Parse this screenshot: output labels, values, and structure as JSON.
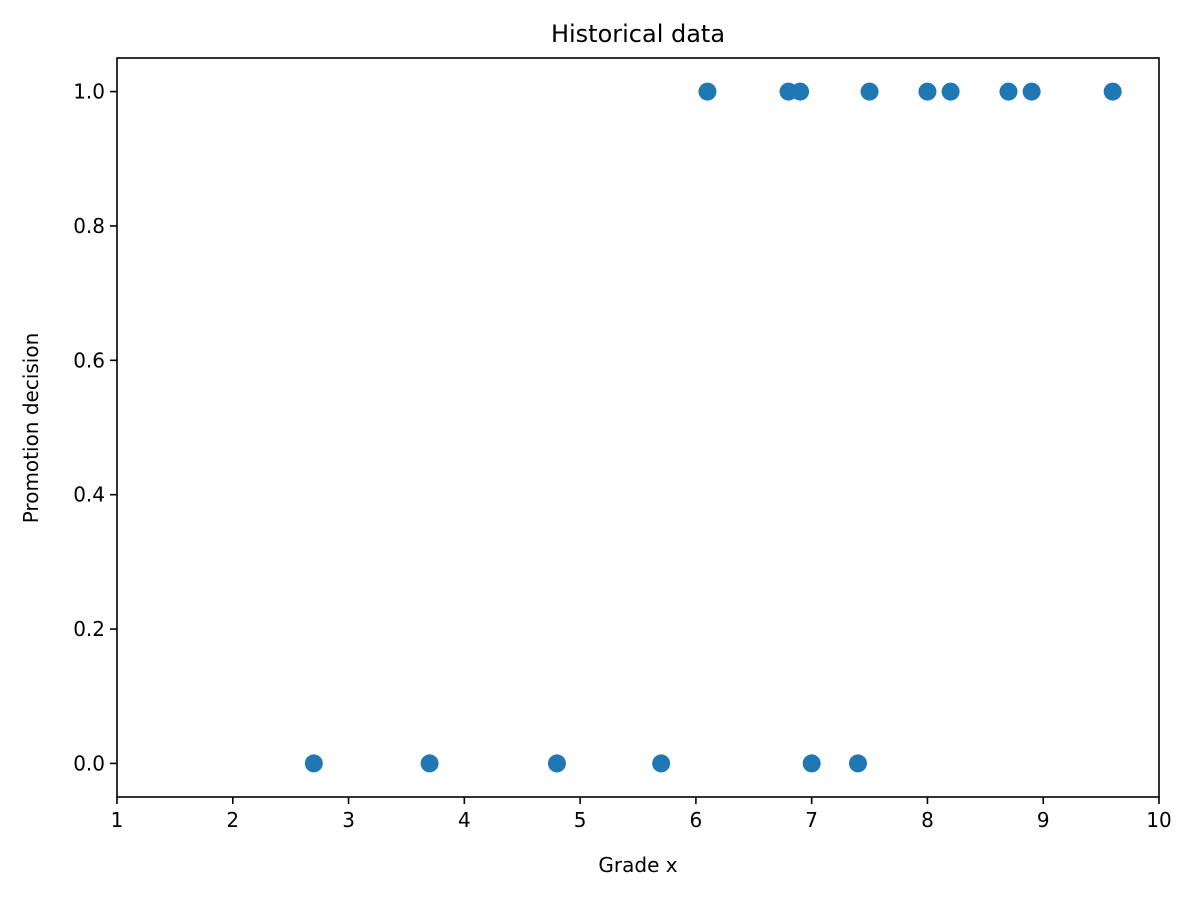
{
  "chart_data": {
    "type": "scatter",
    "title": "Historical data",
    "xlabel": "Grade x",
    "ylabel": "Promotion decision",
    "xlim": [
      1,
      10
    ],
    "ylim": [
      -0.05,
      1.05
    ],
    "x_ticks": [
      1,
      2,
      3,
      4,
      5,
      6,
      7,
      8,
      9,
      10
    ],
    "x_tick_labels": [
      "1",
      "2",
      "3",
      "4",
      "5",
      "6",
      "7",
      "8",
      "9",
      "10"
    ],
    "y_ticks": [
      0.0,
      0.2,
      0.4,
      0.6,
      0.8,
      1.0
    ],
    "y_tick_labels": [
      "0.0",
      "0.2",
      "0.4",
      "0.6",
      "0.8",
      "1.0"
    ],
    "grid": false,
    "marker_color": "#1f77b4",
    "series": [
      {
        "x": [
          2.7,
          3.7,
          4.8,
          5.7,
          6.1,
          6.8,
          6.9,
          7.0,
          7.4,
          7.5,
          8.0,
          8.2,
          8.7,
          8.9,
          9.6
        ],
        "y": [
          0,
          0,
          0,
          0,
          1,
          1,
          1,
          0,
          0,
          1,
          1,
          1,
          1,
          1,
          1
        ]
      }
    ]
  }
}
